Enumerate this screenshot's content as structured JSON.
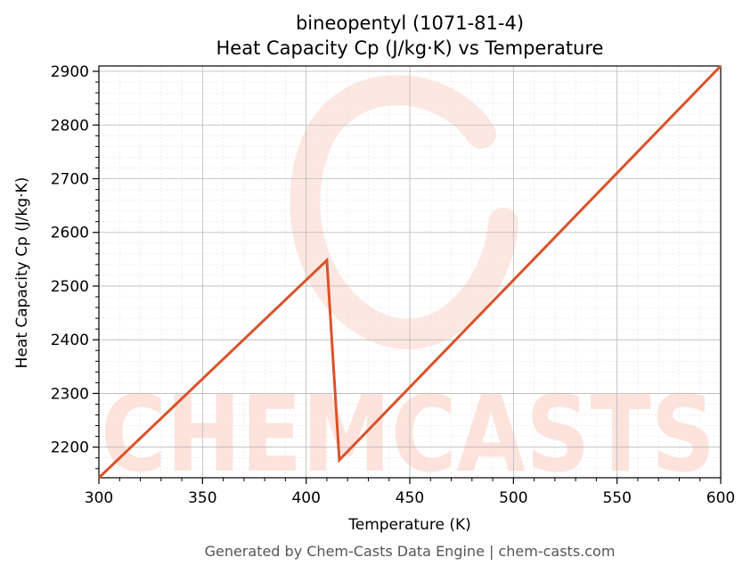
{
  "chart_data": {
    "type": "line",
    "title": "bineopentyl (1071-81-4)",
    "subtitle": "Heat Capacity Cp (J/kg·K) vs Temperature",
    "xlabel": "Temperature (K)",
    "ylabel": "Heat Capacity Cp (J/kg·K)",
    "xlim": [
      300,
      600
    ],
    "ylim": [
      2143,
      2910
    ],
    "xticks": [
      300,
      350,
      400,
      450,
      500,
      550,
      600
    ],
    "yticks": [
      2200,
      2300,
      2400,
      2500,
      2600,
      2700,
      2800,
      2900
    ],
    "grid": true,
    "legend": "none",
    "series": [
      {
        "color": "#d9532a",
        "x": [
          300,
          410,
          416,
          600
        ],
        "y": [
          2143,
          2548,
          2176,
          2910
        ]
      }
    ]
  },
  "watermark": {
    "text": "CHEMCASTS",
    "color": "#fde3dc"
  },
  "footer": {
    "text": "Generated by Chem-Casts Data Engine | chem-casts.com"
  }
}
